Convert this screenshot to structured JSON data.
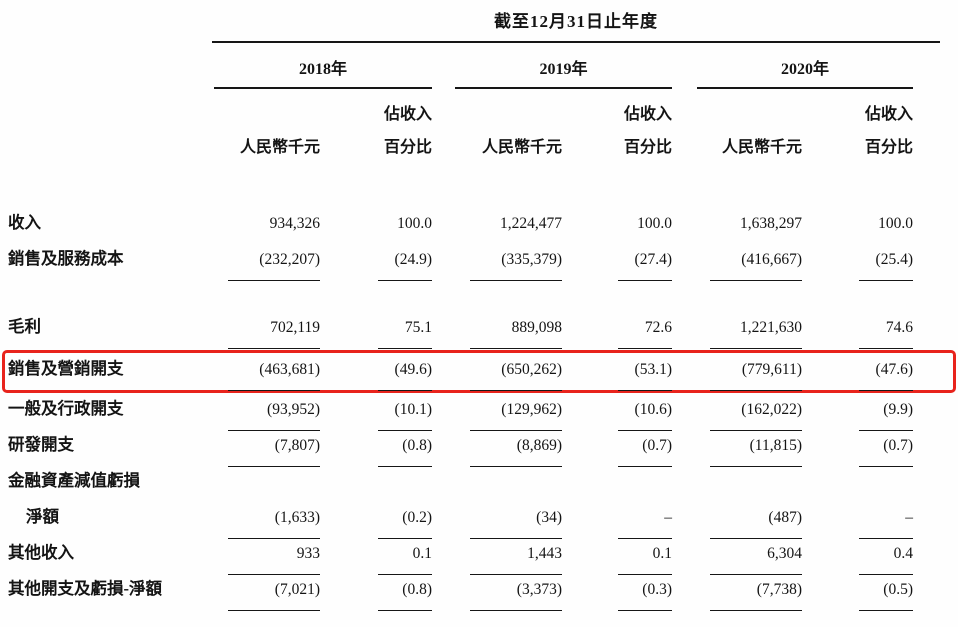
{
  "page": {
    "background": "#ffffff",
    "text_color": "#141414",
    "highlight_color": "#e8231c"
  },
  "table": {
    "title": "截至12月31日止年度",
    "year_headers": [
      "2018年",
      "2019年",
      "2020年"
    ],
    "column_headers": {
      "amount": "人民幣千元",
      "pct_top": "佔收入",
      "pct_bottom": "百分比"
    },
    "rows": [
      {
        "label": "收入",
        "values": [
          "934,326",
          "100.0",
          "1,224,477",
          "100.0",
          "1,638,297",
          "100.0"
        ],
        "underline": false,
        "highlight": false,
        "indent": false,
        "spacer_before": false
      },
      {
        "label": "銷售及服務成本",
        "values": [
          "(232,207)",
          "(24.9)",
          "(335,379)",
          "(27.4)",
          "(416,667)",
          "(25.4)"
        ],
        "underline": true,
        "highlight": false,
        "indent": false,
        "spacer_before": false
      },
      {
        "label": "毛利",
        "values": [
          "702,119",
          "75.1",
          "889,098",
          "72.6",
          "1,221,630",
          "74.6"
        ],
        "underline": true,
        "highlight": false,
        "indent": false,
        "spacer_before": true
      },
      {
        "label": "銷售及營銷開支",
        "values": [
          "(463,681)",
          "(49.6)",
          "(650,262)",
          "(53.1)",
          "(779,611)",
          "(47.6)"
        ],
        "underline": true,
        "highlight": true,
        "indent": false,
        "spacer_before": false
      },
      {
        "label": "一般及行政開支",
        "values": [
          "(93,952)",
          "(10.1)",
          "(129,962)",
          "(10.6)",
          "(162,022)",
          "(9.9)"
        ],
        "underline": true,
        "highlight": false,
        "indent": false,
        "spacer_before": false
      },
      {
        "label": "研發開支",
        "values": [
          "(7,807)",
          "(0.8)",
          "(8,869)",
          "(0.7)",
          "(11,815)",
          "(0.7)"
        ],
        "underline": true,
        "highlight": false,
        "indent": false,
        "spacer_before": false
      },
      {
        "label": "金融資產減值虧損",
        "values": [
          "",
          "",
          "",
          "",
          "",
          ""
        ],
        "underline": false,
        "highlight": false,
        "indent": false,
        "spacer_before": false
      },
      {
        "label": "淨額",
        "values": [
          "(1,633)",
          "(0.2)",
          "(34)",
          "–",
          "(487)",
          "–"
        ],
        "underline": true,
        "highlight": false,
        "indent": true,
        "spacer_before": false
      },
      {
        "label": "其他收入",
        "values": [
          "933",
          "0.1",
          "1,443",
          "0.1",
          "6,304",
          "0.4"
        ],
        "underline": true,
        "highlight": false,
        "indent": false,
        "spacer_before": false
      },
      {
        "label": "其他開支及虧損-淨額",
        "values": [
          "(7,021)",
          "(0.8)",
          "(3,373)",
          "(0.3)",
          "(7,738)",
          "(0.5)"
        ],
        "underline": true,
        "highlight": false,
        "indent": false,
        "spacer_before": false
      }
    ]
  }
}
